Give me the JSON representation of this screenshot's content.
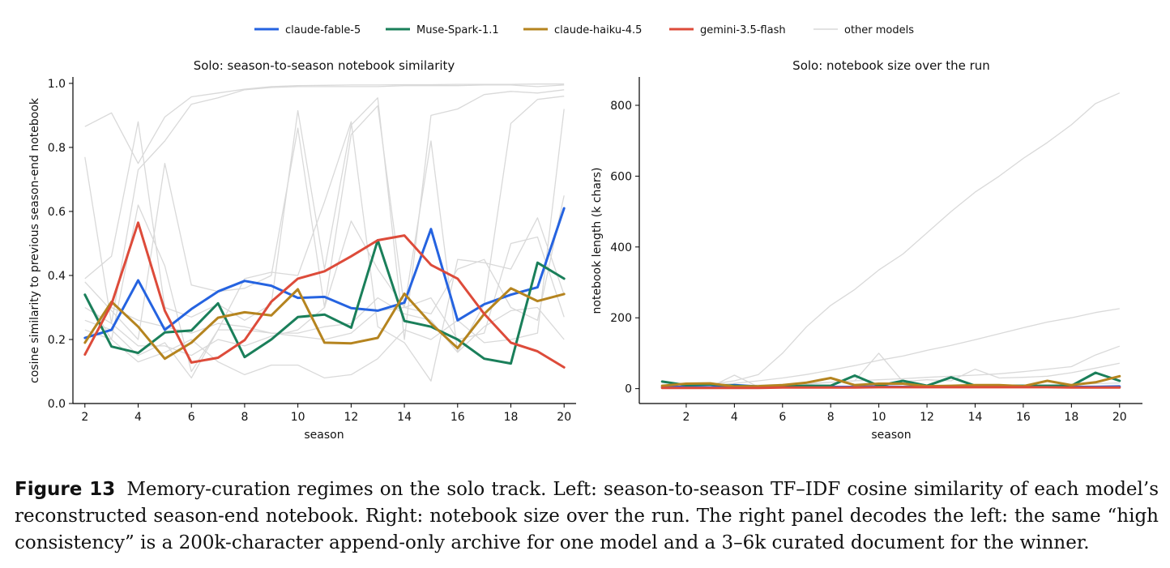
{
  "legend": [
    {
      "name": "claude-fable-5",
      "color": "#2563e0"
    },
    {
      "name": "Muse-Spark-1.1",
      "color": "#1a7f5a"
    },
    {
      "name": "claude-haiku-4.5",
      "color": "#b5841f"
    },
    {
      "name": "gemini-3.5-flash",
      "color": "#dd4b3a"
    },
    {
      "name": "other models",
      "color": "#d9d9d9"
    }
  ],
  "caption": {
    "label": "Figure 13",
    "text": "Memory-curation regimes on the solo track. Left: season-to-season TF–IDF cosine similarity of each model’s reconstructed season-end notebook. Right: notebook size over the run. The right panel decodes the left: the same “high consistency” is a 200k-character append-only archive for one model and a 3–6k curated document for the winner."
  },
  "chart_data": [
    {
      "type": "line",
      "title": "Solo: season-to-season notebook similarity",
      "xlabel": "season",
      "ylabel": "cosine similarity to previous season-end notebook",
      "xlim": [
        1.55,
        20.45
      ],
      "ylim": [
        0,
        1.02
      ],
      "xticks": [
        2,
        4,
        6,
        8,
        10,
        12,
        14,
        16,
        18,
        20
      ],
      "yticks": [
        0.0,
        0.2,
        0.4,
        0.6,
        0.8,
        1.0
      ],
      "ytick_labels": [
        "0.0",
        "0.2",
        "0.4",
        "0.6",
        "0.8",
        "1.0"
      ],
      "grid": false,
      "x": [
        2,
        3,
        4,
        5,
        6,
        7,
        8,
        9,
        10,
        11,
        12,
        13,
        14,
        15,
        16,
        17,
        18,
        19,
        20
      ],
      "series": [
        {
          "name": "claude-fable-5",
          "values": [
            0.205,
            0.23,
            0.385,
            0.23,
            0.295,
            0.35,
            0.383,
            0.368,
            0.33,
            0.333,
            0.298,
            0.29,
            0.315,
            0.545,
            0.26,
            0.31,
            0.34,
            0.363,
            0.61
          ]
        },
        {
          "name": "Muse-Spark-1.1",
          "values": [
            0.34,
            0.178,
            0.158,
            0.222,
            0.228,
            0.313,
            0.145,
            0.2,
            0.27,
            0.278,
            0.237,
            0.51,
            0.258,
            0.24,
            0.2,
            0.14,
            0.125,
            0.44,
            0.39
          ]
        },
        {
          "name": "claude-haiku-4.5",
          "values": [
            0.19,
            0.318,
            0.24,
            0.14,
            0.19,
            0.268,
            0.285,
            0.275,
            0.357,
            0.19,
            0.188,
            0.205,
            0.343,
            0.25,
            0.173,
            0.28,
            0.36,
            0.32,
            0.342
          ]
        },
        {
          "name": "gemini-3.5-flash",
          "values": [
            0.153,
            0.31,
            0.565,
            0.29,
            0.128,
            0.143,
            0.198,
            0.318,
            0.39,
            0.413,
            0.46,
            0.51,
            0.525,
            0.433,
            0.39,
            0.28,
            0.19,
            0.163,
            0.113
          ]
        }
      ],
      "other_series": [
        [
          0.865,
          0.908,
          0.75,
          0.895,
          0.958,
          0.97,
          0.982,
          0.99,
          0.993,
          0.994,
          0.995,
          0.995,
          0.996,
          0.996,
          0.997,
          0.997,
          0.997,
          0.998,
          0.998
        ],
        [
          0.77,
          0.25,
          0.73,
          0.82,
          0.935,
          0.955,
          0.98,
          0.987,
          0.99,
          0.99,
          0.99,
          0.99,
          0.993,
          0.993,
          0.993,
          0.995,
          0.995,
          0.99,
          0.995
        ],
        [
          0.39,
          0.46,
          0.88,
          0.3,
          0.27,
          0.31,
          0.26,
          0.31,
          0.915,
          0.42,
          0.87,
          0.955,
          0.2,
          0.9,
          0.92,
          0.965,
          0.975,
          0.97,
          0.98
        ],
        [
          0.38,
          0.29,
          0.2,
          0.75,
          0.37,
          0.35,
          0.36,
          0.4,
          0.86,
          0.3,
          0.84,
          0.93,
          0.3,
          0.82,
          0.16,
          0.31,
          0.875,
          0.95,
          0.96
        ],
        [
          0.34,
          0.2,
          0.62,
          0.43,
          0.1,
          0.23,
          0.39,
          0.41,
          0.4,
          0.63,
          0.88,
          0.24,
          0.19,
          0.07,
          0.45,
          0.44,
          0.42,
          0.58,
          0.34
        ],
        [
          0.3,
          0.25,
          0.18,
          0.18,
          0.15,
          0.2,
          0.18,
          0.21,
          0.23,
          0.3,
          0.57,
          0.42,
          0.3,
          0.33,
          0.2,
          0.22,
          0.5,
          0.52,
          0.27
        ],
        [
          0.26,
          0.23,
          0.15,
          0.19,
          0.08,
          0.23,
          0.23,
          0.22,
          0.22,
          0.24,
          0.25,
          0.33,
          0.28,
          0.26,
          0.16,
          0.24,
          0.29,
          0.3,
          0.2
        ],
        [
          0.23,
          0.2,
          0.13,
          0.16,
          0.2,
          0.13,
          0.09,
          0.12,
          0.12,
          0.08,
          0.09,
          0.14,
          0.23,
          0.2,
          0.26,
          0.19,
          0.2,
          0.22,
          0.92
        ],
        [
          0.2,
          0.3,
          0.26,
          0.24,
          0.22,
          0.25,
          0.24,
          0.22,
          0.21,
          0.2,
          0.22,
          0.29,
          0.3,
          0.28,
          0.42,
          0.45,
          0.3,
          0.26,
          0.65
        ]
      ]
    },
    {
      "type": "line",
      "title": "Solo: notebook size over the run",
      "xlabel": "season",
      "ylabel": "notebook length (k chars)",
      "xlim": [
        0.05,
        20.95
      ],
      "ylim": [
        -42,
        880
      ],
      "xticks": [
        2,
        4,
        6,
        8,
        10,
        12,
        14,
        16,
        18,
        20
      ],
      "yticks": [
        0,
        200,
        400,
        600,
        800
      ],
      "ytick_labels": [
        "0",
        "200",
        "400",
        "600",
        "800"
      ],
      "grid": false,
      "x": [
        1,
        2,
        3,
        4,
        5,
        6,
        7,
        8,
        9,
        10,
        11,
        12,
        13,
        14,
        15,
        16,
        17,
        18,
        19,
        20
      ],
      "series": [
        {
          "name": "claude-fable-5",
          "values": [
            5,
            5,
            4,
            10,
            6,
            5,
            6,
            5,
            5,
            6,
            5,
            6,
            6,
            6,
            5,
            5,
            5,
            5,
            5,
            6
          ]
        },
        {
          "name": "Muse-Spark-1.1",
          "values": [
            20,
            10,
            12,
            8,
            6,
            6,
            8,
            8,
            37,
            8,
            22,
            8,
            32,
            8,
            8,
            8,
            8,
            8,
            45,
            22
          ]
        },
        {
          "name": "claude-haiku-4.5",
          "values": [
            8,
            14,
            15,
            6,
            7,
            10,
            17,
            30,
            10,
            14,
            14,
            7,
            8,
            10,
            10,
            7,
            22,
            10,
            18,
            35
          ]
        },
        {
          "name": "gemini-3.5-flash",
          "values": [
            2,
            2,
            2,
            2,
            2,
            3,
            3,
            3,
            3,
            4,
            4,
            4,
            4,
            4,
            4,
            4,
            4,
            3,
            3,
            3
          ]
        }
      ],
      "other_series": [
        [
          5,
          8,
          12,
          22,
          40,
          100,
          175,
          235,
          280,
          335,
          380,
          440,
          500,
          555,
          600,
          650,
          695,
          745,
          805,
          835
        ],
        [
          3,
          6,
          10,
          15,
          22,
          30,
          40,
          52,
          65,
          80,
          92,
          108,
          122,
          138,
          155,
          172,
          188,
          200,
          215,
          226
        ],
        [
          2,
          4,
          5,
          8,
          10,
          12,
          15,
          18,
          22,
          25,
          28,
          32,
          35,
          38,
          42,
          48,
          55,
          62,
          95,
          120
        ],
        [
          2,
          3,
          5,
          38,
          5,
          8,
          12,
          18,
          22,
          100,
          20,
          25,
          22,
          55,
          30,
          32,
          35,
          45,
          58,
          72
        ],
        [
          1,
          2,
          3,
          4,
          4,
          5,
          5,
          6,
          6,
          7,
          7,
          8,
          8,
          9,
          9,
          10,
          10,
          12,
          14,
          16
        ],
        [
          1,
          2,
          2,
          3,
          3,
          3,
          4,
          4,
          4,
          5,
          5,
          5,
          6,
          6,
          6,
          7,
          7,
          7,
          8,
          9
        ]
      ]
    }
  ]
}
